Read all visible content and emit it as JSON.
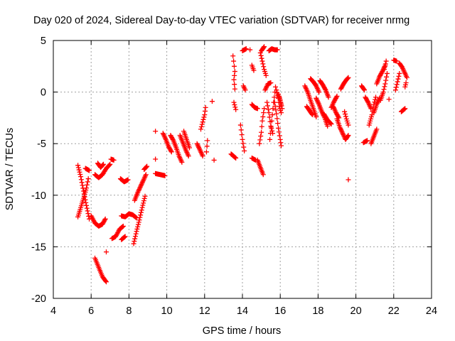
{
  "chart_data": {
    "type": "scatter",
    "title": "Day 020 of 2024, Sidereal Day-to-day VTEC variation (SDTVAR) for receiver nrmg",
    "xlabel": "GPS time / hours",
    "ylabel": "SDTVAR / TECUs",
    "xlim": [
      4,
      24
    ],
    "ylim": [
      -20,
      5
    ],
    "xticks": [
      4,
      6,
      8,
      10,
      12,
      14,
      16,
      18,
      20,
      22,
      24
    ],
    "yticks": [
      -20,
      -15,
      -10,
      -5,
      0,
      5
    ],
    "grid": true,
    "marker": "+",
    "color": "#ff0000",
    "series": [
      {
        "segments": [
          [
            [
              5.3,
              -7.1
            ],
            [
              5.45,
              -8.2
            ],
            [
              5.6,
              -9.6
            ],
            [
              5.75,
              -11.0
            ],
            [
              5.9,
              -12.3
            ]
          ],
          [
            [
              5.3,
              -12.1
            ],
            [
              5.45,
              -11.2
            ],
            [
              5.6,
              -10.3
            ],
            [
              5.75,
              -9.3
            ],
            [
              5.85,
              -8.4
            ]
          ],
          [
            [
              5.7,
              -7.4
            ],
            [
              5.9,
              -7.6
            ]
          ],
          [
            [
              6.0,
              -12.0
            ],
            [
              6.2,
              -12.7
            ],
            [
              6.4,
              -13.0
            ],
            [
              6.6,
              -12.8
            ],
            [
              6.75,
              -12.3
            ]
          ],
          [
            [
              6.2,
              -8.0
            ],
            [
              6.4,
              -8.3
            ],
            [
              6.6,
              -8.0
            ],
            [
              6.8,
              -7.4
            ],
            [
              7.0,
              -7.0
            ]
          ],
          [
            [
              6.35,
              -6.9
            ],
            [
              6.5,
              -7.3
            ],
            [
              6.65,
              -7.0
            ]
          ],
          [
            [
              7.05,
              -6.5
            ],
            [
              7.2,
              -6.6
            ]
          ],
          [
            [
              7.1,
              -14.2
            ],
            [
              7.3,
              -14.0
            ],
            [
              7.5,
              -13.3
            ],
            [
              7.7,
              -13.0
            ]
          ],
          [
            [
              7.55,
              -8.4
            ],
            [
              7.75,
              -8.7
            ],
            [
              7.95,
              -8.5
            ]
          ],
          [
            [
              7.6,
              -12.0
            ],
            [
              7.8,
              -12.1
            ],
            [
              8.0,
              -11.8
            ],
            [
              8.2,
              -11.9
            ],
            [
              8.4,
              -12.2
            ]
          ],
          [
            [
              6.2,
              -16.1
            ],
            [
              6.4,
              -17.0
            ],
            [
              6.6,
              -17.9
            ],
            [
              6.8,
              -18.4
            ]
          ],
          [
            [
              6.8,
              -15.5
            ]
          ],
          [
            [
              7.6,
              -14.3
            ],
            [
              7.8,
              -14.0
            ]
          ],
          [
            [
              8.25,
              -14.7
            ],
            [
              8.4,
              -13.5
            ],
            [
              8.55,
              -12.4
            ],
            [
              8.7,
              -11.2
            ],
            [
              8.85,
              -10.1
            ]
          ],
          [
            [
              8.3,
              -10.5
            ],
            [
              8.45,
              -9.8
            ],
            [
              8.6,
              -9.2
            ],
            [
              8.75,
              -8.6
            ],
            [
              8.9,
              -8.0
            ]
          ],
          [
            [
              8.8,
              -7.5
            ],
            [
              8.95,
              -7.2
            ]
          ],
          [
            [
              9.4,
              -3.8
            ]
          ],
          [
            [
              9.4,
              -6.5
            ]
          ],
          [
            [
              9.4,
              -7.9
            ],
            [
              9.9,
              -8.1
            ]
          ],
          [
            [
              9.8,
              -4.0
            ],
            [
              9.95,
              -4.6
            ],
            [
              10.1,
              -5.3
            ],
            [
              10.25,
              -5.8
            ]
          ],
          [
            [
              10.2,
              -4.2
            ],
            [
              10.35,
              -4.7
            ],
            [
              10.5,
              -5.4
            ],
            [
              10.65,
              -6.2
            ],
            [
              10.8,
              -6.8
            ]
          ],
          [
            [
              10.7,
              -4.2
            ],
            [
              10.85,
              -4.9
            ],
            [
              11.0,
              -5.6
            ],
            [
              11.15,
              -6.2
            ]
          ],
          [
            [
              10.9,
              -3.8
            ],
            [
              11.05,
              -4.6
            ],
            [
              11.2,
              -5.4
            ]
          ],
          [
            [
              11.6,
              -5.0
            ],
            [
              11.75,
              -5.6
            ],
            [
              11.9,
              -6.2
            ]
          ],
          [
            [
              11.8,
              -3.6
            ],
            [
              11.9,
              -2.9
            ],
            [
              12.0,
              -2.2
            ],
            [
              12.05,
              -1.5
            ]
          ],
          [
            [
              12.1,
              -5.8
            ],
            [
              12.15,
              -4.7
            ]
          ],
          [
            [
              12.4,
              -0.9
            ]
          ],
          [
            [
              12.5,
              -6.6
            ]
          ],
          [
            [
              13.4,
              -6.0
            ],
            [
              13.65,
              -6.4
            ]
          ],
          [
            [
              13.5,
              3.5
            ],
            [
              13.6,
              2.0
            ],
            [
              13.55,
              1.2
            ],
            [
              13.6,
              0.3
            ]
          ],
          [
            [
              13.55,
              -1.0
            ],
            [
              13.65,
              -1.7
            ]
          ],
          [
            [
              13.9,
              -3.2
            ],
            [
              14.0,
              -4.6
            ],
            [
              14.1,
              -5.7
            ]
          ],
          [
            [
              14.0,
              4.0
            ],
            [
              14.1,
              4.1
            ],
            [
              14.2,
              4.2
            ]
          ],
          [
            [
              14.05,
              0.6
            ],
            [
              14.15,
              0.2
            ]
          ],
          [
            [
              14.4,
              4.1
            ]
          ],
          [
            [
              14.5,
              2.6
            ],
            [
              14.6,
              2.1
            ]
          ],
          [
            [
              14.5,
              -1.2
            ],
            [
              14.65,
              -1.5
            ],
            [
              14.8,
              -1.6
            ]
          ],
          [
            [
              14.5,
              -6.4
            ],
            [
              14.7,
              -6.6
            ]
          ],
          [
            [
              14.8,
              -6.6
            ],
            [
              14.95,
              -7.3
            ],
            [
              15.1,
              -8.0
            ]
          ],
          [
            [
              14.95,
              3.8
            ],
            [
              15.05,
              3.0
            ],
            [
              15.15,
              2.2
            ],
            [
              15.25,
              1.6
            ]
          ],
          [
            [
              15.0,
              4.0
            ],
            [
              15.15,
              4.4
            ]
          ],
          [
            [
              14.9,
              -5.0
            ],
            [
              15.0,
              -3.9
            ],
            [
              15.05,
              -2.8
            ],
            [
              15.15,
              -1.6
            ]
          ],
          [
            [
              15.2,
              0.2
            ],
            [
              15.35,
              0.8
            ],
            [
              15.5,
              0.9
            ]
          ],
          [
            [
              15.3,
              -1.0
            ],
            [
              15.4,
              -2.0
            ],
            [
              15.5,
              -3.3
            ],
            [
              15.6,
              -4.0
            ]
          ],
          [
            [
              15.4,
              4.0
            ],
            [
              15.55,
              4.2
            ],
            [
              15.7,
              4.1
            ],
            [
              15.85,
              4.1
            ]
          ],
          [
            [
              15.45,
              -4.6
            ],
            [
              15.55,
              -2.8
            ],
            [
              15.65,
              -1.0
            ],
            [
              15.75,
              0.5
            ]
          ],
          [
            [
              15.7,
              -1.0
            ],
            [
              15.8,
              -2.1
            ],
            [
              15.9,
              -3.5
            ],
            [
              16.0,
              -4.6
            ],
            [
              16.05,
              -5.2
            ]
          ],
          [
            [
              15.8,
              0.2
            ],
            [
              15.9,
              -0.6
            ],
            [
              15.95,
              -1.4
            ],
            [
              16.05,
              -2.0
            ]
          ],
          [
            [
              15.9,
              -0.2
            ],
            [
              16.0,
              -0.8
            ],
            [
              16.1,
              -1.6
            ]
          ],
          [
            [
              15.95,
              -0.5
            ],
            [
              16.05,
              -1.2
            ]
          ],
          [
            [
              17.3,
              0.6
            ],
            [
              17.45,
              0.0
            ],
            [
              17.6,
              -0.8
            ],
            [
              17.75,
              -1.6
            ],
            [
              17.9,
              -2.4
            ]
          ],
          [
            [
              17.4,
              -1.4
            ],
            [
              17.55,
              -1.8
            ],
            [
              17.7,
              -2.2
            ]
          ],
          [
            [
              17.6,
              1.3
            ],
            [
              17.75,
              1.0
            ],
            [
              17.9,
              0.6
            ],
            [
              18.05,
              0.0
            ]
          ],
          [
            [
              17.9,
              -0.6
            ],
            [
              18.05,
              -1.2
            ],
            [
              18.2,
              -1.9
            ],
            [
              18.35,
              -2.5
            ],
            [
              18.5,
              -3.3
            ]
          ],
          [
            [
              18.1,
              1.1
            ],
            [
              18.25,
              0.7
            ],
            [
              18.4,
              0.2
            ],
            [
              18.55,
              -0.5
            ]
          ],
          [
            [
              18.3,
              -2.1
            ],
            [
              18.5,
              -2.7
            ],
            [
              18.7,
              -3.1
            ]
          ],
          [
            [
              18.7,
              -1.5
            ],
            [
              18.85,
              -0.9
            ],
            [
              19.0,
              -0.4
            ]
          ],
          [
            [
              18.8,
              -1.4
            ],
            [
              18.95,
              -2.0
            ],
            [
              19.1,
              -2.5
            ]
          ],
          [
            [
              19.0,
              -2.6
            ],
            [
              19.15,
              -3.4
            ],
            [
              19.3,
              -4.0
            ],
            [
              19.45,
              -4.6
            ],
            [
              19.6,
              -4.2
            ]
          ],
          [
            [
              19.2,
              0.3
            ],
            [
              19.35,
              0.8
            ],
            [
              19.5,
              1.2
            ],
            [
              19.6,
              1.4
            ]
          ],
          [
            [
              19.4,
              -1.9
            ],
            [
              19.5,
              -2.6
            ],
            [
              19.6,
              -3.2
            ]
          ],
          [
            [
              19.6,
              -8.5
            ]
          ],
          [
            [
              20.3,
              0.6
            ],
            [
              20.45,
              0.2
            ]
          ],
          [
            [
              20.4,
              -4.9
            ],
            [
              20.6,
              -4.7
            ]
          ],
          [
            [
              20.5,
              -0.5
            ],
            [
              20.65,
              -1.0
            ],
            [
              20.8,
              -1.6
            ]
          ],
          [
            [
              20.7,
              -3.2
            ],
            [
              20.85,
              -2.2
            ],
            [
              20.95,
              -1.2
            ],
            [
              21.05,
              -0.5
            ]
          ],
          [
            [
              20.8,
              -5.0
            ],
            [
              20.95,
              -4.3
            ],
            [
              21.1,
              -3.6
            ]
          ],
          [
            [
              20.95,
              -2.0
            ],
            [
              21.1,
              -1.2
            ],
            [
              21.25,
              -0.6
            ]
          ],
          [
            [
              21.1,
              0.8
            ],
            [
              21.25,
              1.5
            ],
            [
              21.4,
              2.0
            ],
            [
              21.55,
              2.6
            ]
          ],
          [
            [
              21.3,
              -0.8
            ],
            [
              21.45,
              0.0
            ],
            [
              21.55,
              0.8
            ],
            [
              21.65,
              1.8
            ]
          ],
          [
            [
              21.5,
              2.2
            ],
            [
              21.6,
              3.0
            ]
          ],
          [
            [
              21.75,
              -0.7
            ]
          ],
          [
            [
              22.0,
              3.1
            ],
            [
              22.15,
              3.0
            ]
          ],
          [
            [
              22.1,
              0.2
            ],
            [
              22.2,
              1.0
            ],
            [
              22.3,
              1.8
            ]
          ],
          [
            [
              22.3,
              2.8
            ],
            [
              22.45,
              2.4
            ],
            [
              22.6,
              1.8
            ],
            [
              22.7,
              1.4
            ]
          ],
          [
            [
              22.4,
              -1.9
            ],
            [
              22.6,
              -1.6
            ]
          ],
          [
            [
              22.6,
              0.5
            ],
            [
              22.65,
              0.9
            ]
          ]
        ]
      }
    ]
  }
}
